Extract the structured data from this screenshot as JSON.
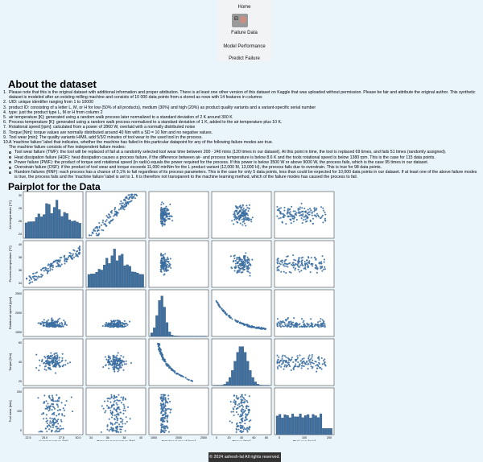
{
  "nav": {
    "home": "Home",
    "avatar_initials": "El",
    "failure_data": "Failure Data",
    "model_performance": "Model Performance",
    "predict_failure": "Predict Failure"
  },
  "about": {
    "title": "About the dataset",
    "items": [
      "Please note that this is the original dataset with additional information and proper attribution. There is at least one other version of this dataset on Kaggle that was uploaded without permission. Please be fair and attribute the original author. This synthetic dataset is modeled after an existing milling machine and consists of 10 000 data points from a stored as rows with 14 features in columns",
      "UID: unique identifier ranging from 1 to 10000",
      "product ID: consisting of a letter L, M, or H for low (50% of all products), medium (30%) and high (20%) as product quality variants and a variant-specific serial number",
      "type: just the product type L, M or H from column 2",
      "air temperature [K]: generated using a random walk process later normalized to a standard deviation of 2 K around 300 K",
      "Process temperature [K]: generated using a random walk process normalized to a standard deviation of 1 K, added to the air temperature plus 10 K.",
      "Rotational speed [rpm]: calculated from a power of 2860 W, overlaid with a normally distributed noise",
      "Torque [Nm]: torque values are normally distributed around 40 Nm with a SD = 10 Nm and no negative values.",
      "Tool wear [min]: The quality variants H/M/L add 5/3/2 minutes of tool wear to the used tool in the process.",
      "A 'machine failure' label that indicates, whether the machine has failed in this particular datapoint for any of the following failure modes are true."
    ],
    "modes_intro": "The machine failure consists of five independent failure modes:",
    "modes": [
      "Tool wear failure (TWF): the tool will be replaced of fail at a randomly selected tool wear time between 200 - 240 mins (120 times in our dataset). At this point in time, the tool is replaced 69 times, and fails 51 times (randomly assigned).",
      "Heat dissipation failure (HDF): heat dissipation causes a process failure, if the difference between air- and process temperature is below 8.6 K and the tools rotational speed is below 1380 rpm. This is the case for 115 data points.",
      "Power failure (PWF): the product of torque and rotational speed (in rad/s) equals the power required for the process. If this power is below 3500 W or above 9000 W, the process fails, which is the case 95 times in our dataset.",
      "Overstrain failure (OSF): if the product of tool wear and torque exceeds 11,000 minNm for the L product variant (12,000 M, 13,000 H), the process fails due to overstrain. This is true for 98 data points.",
      "Random failures (RNF): each process has a chance of 0,1% to fail regardless of its process parameters. This is the case for only 5 data points, less than could be expected for 10,000 data points in our dataset. If at least one of the above failure modes is true, the process fails and the 'machine failure' label is set to 1. It is therefore not transparent to the machine learning method, which of the failure modes has caused the process to fail."
    ]
  },
  "pairplot": {
    "title": "Pairplot for the Data",
    "point_color": "#4a7fb5",
    "hist_color": "#3f6f9e",
    "variables": [
      {
        "name": "Air temperature [°C]",
        "ticks": [
          "22.5",
          "25.0",
          "27.5",
          "30.0"
        ],
        "yticks": [
          "24",
          "26",
          "28",
          "30"
        ]
      },
      {
        "name": "Process temperature [°C]",
        "ticks": [
          "34",
          "36",
          "38",
          "40"
        ],
        "yticks": [
          "34",
          "36",
          "38",
          "40"
        ]
      },
      {
        "name": "Rotational speed [rpm]",
        "ticks": [
          "1500",
          "2000",
          "2500"
        ],
        "yticks": [
          "1500",
          "2000",
          "2500"
        ]
      },
      {
        "name": "Torque [Nm]",
        "ticks": [
          "0",
          "20",
          "40",
          "60",
          "80"
        ],
        "yticks": [
          "20",
          "40",
          "60"
        ]
      },
      {
        "name": "Tool wear [min]",
        "ticks": [
          "0",
          "100",
          "200"
        ],
        "yticks": [
          "0",
          "100",
          "200"
        ]
      }
    ]
  },
  "footer": "© 2024 ashesh-lal All rights reserved."
}
